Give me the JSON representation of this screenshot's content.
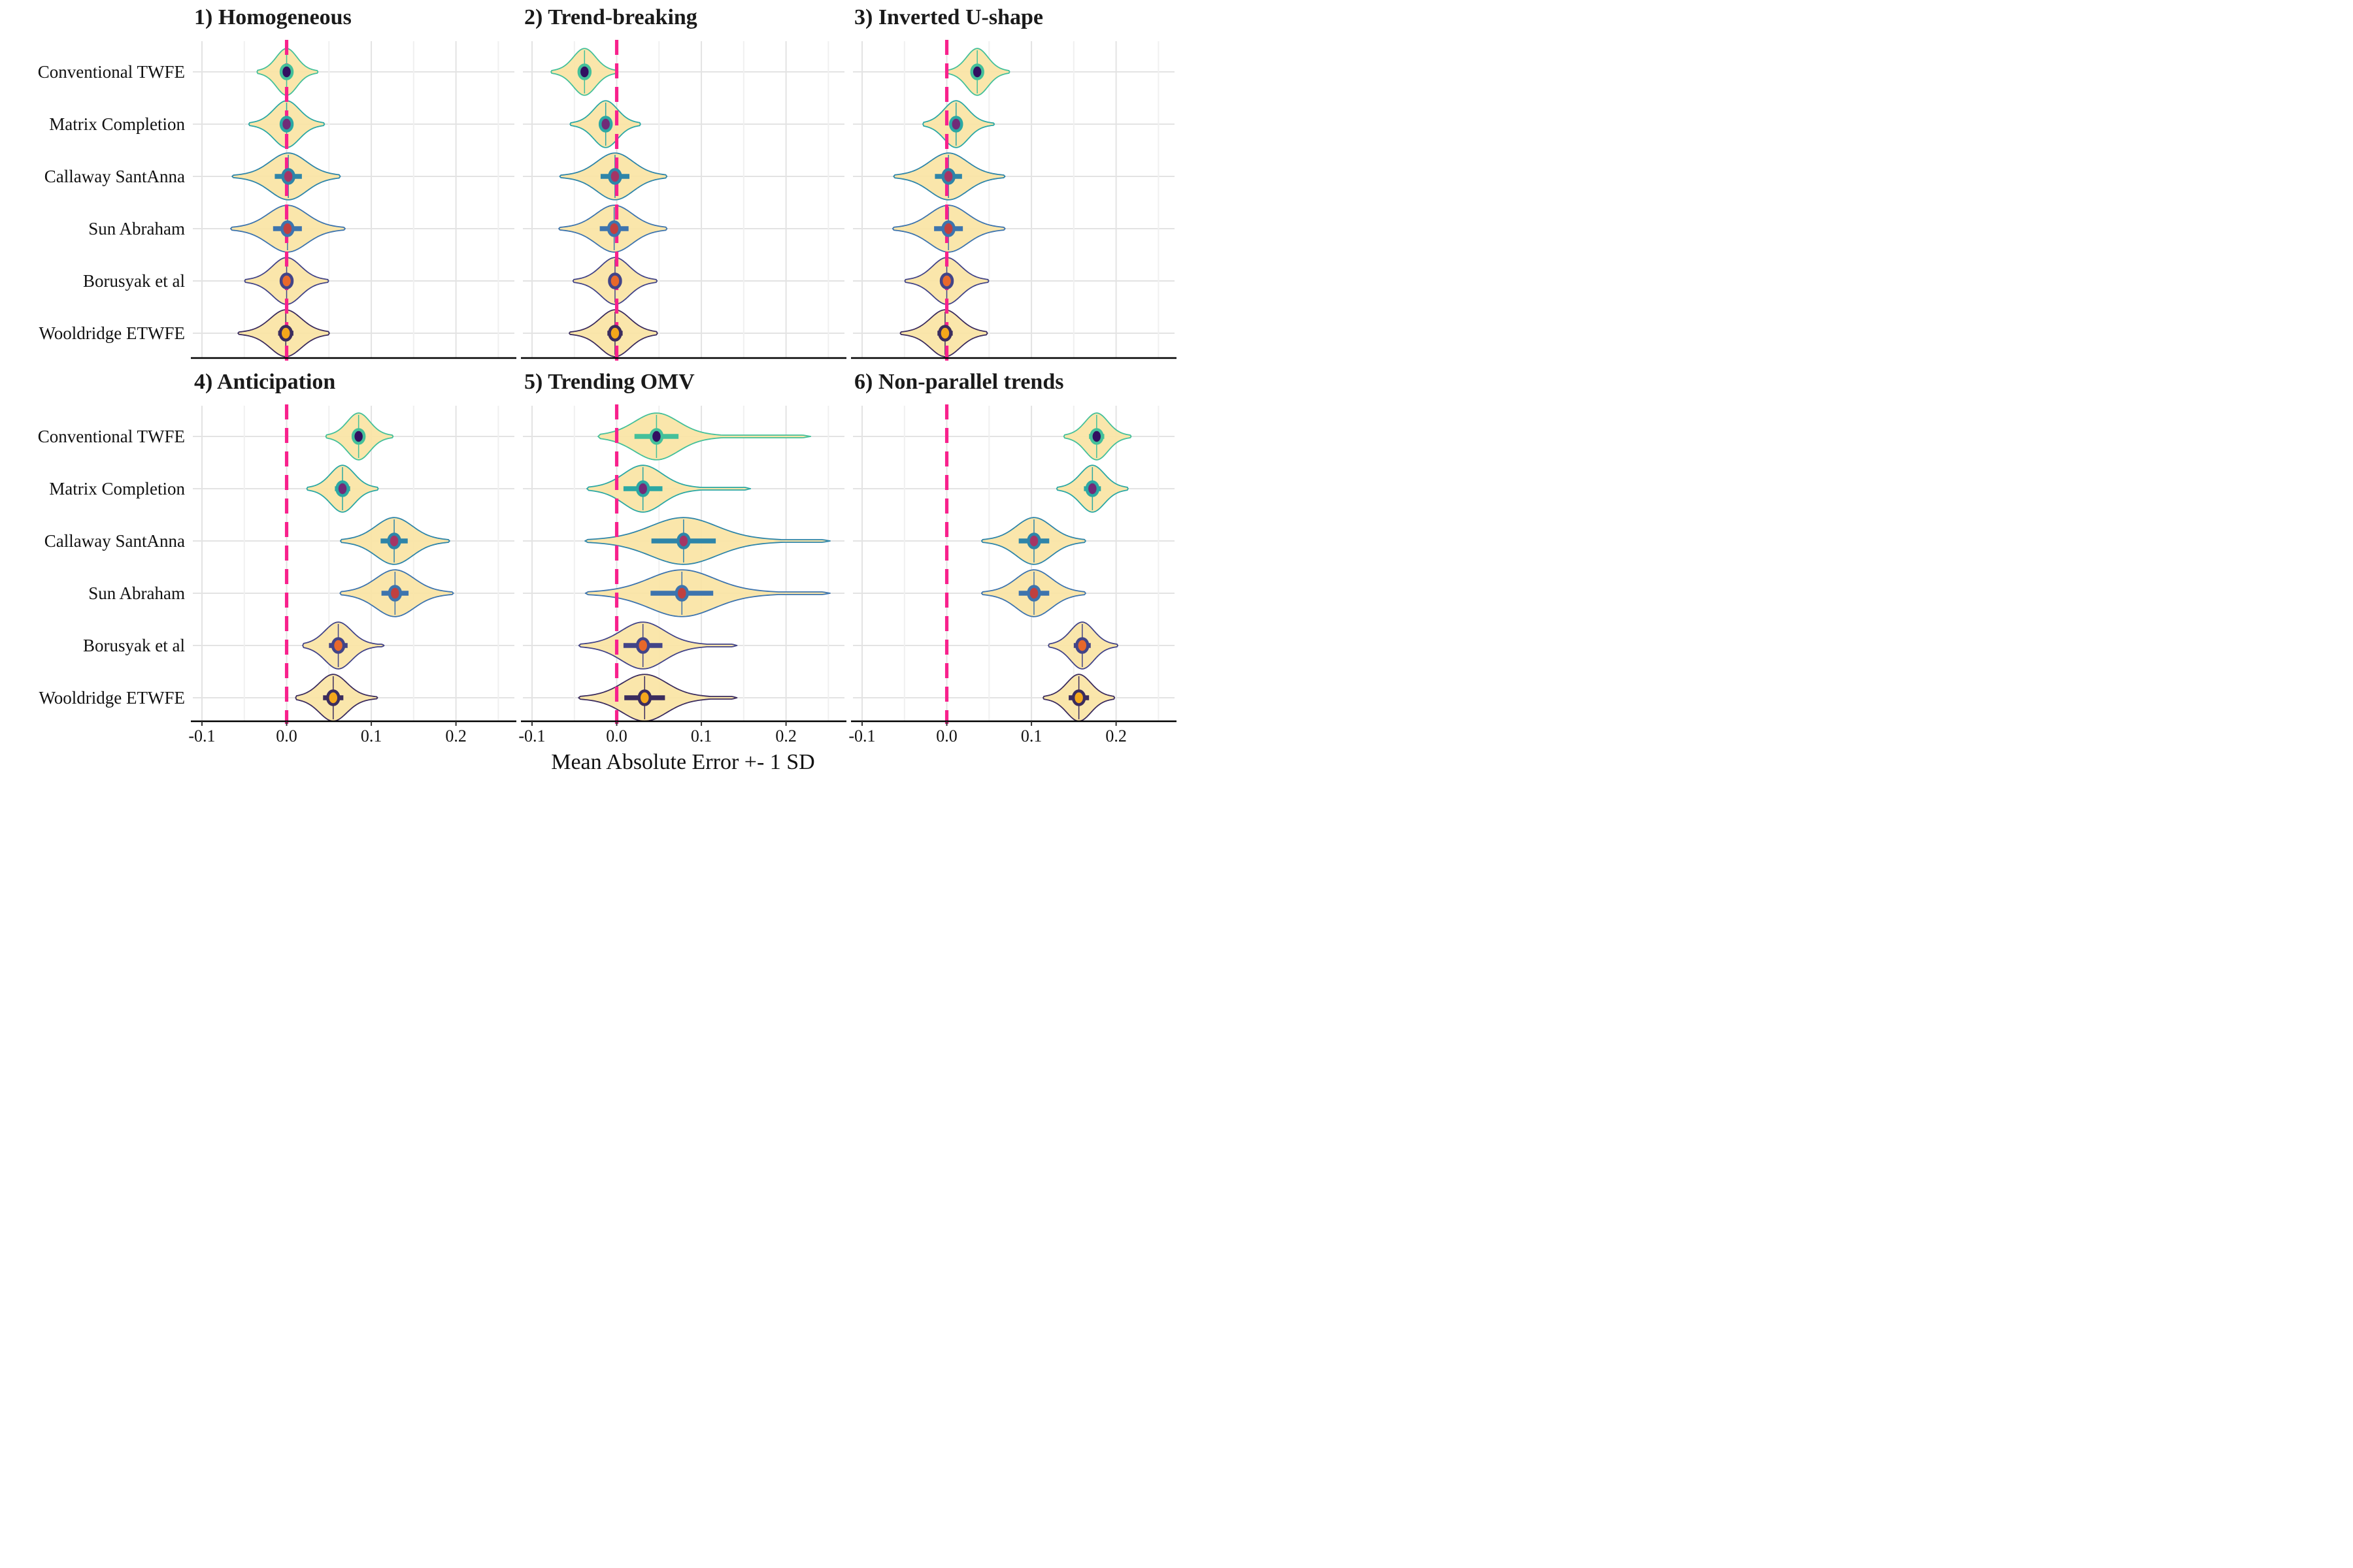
{
  "figure": {
    "caption": "Mean Absolute Error +- 1 SD"
  },
  "chart_data": {
    "type": "violin",
    "title": "",
    "xlabel": "Mean Absolute Error +- 1 SD",
    "x_axis": {
      "ticks": [
        -0.1,
        0.0,
        0.1,
        0.2
      ],
      "tick_labels": [
        "-0.1",
        "0.0",
        "0.1",
        "0.2"
      ],
      "range": [
        -0.1108,
        0.269
      ],
      "minor_gridlines": [
        -0.05,
        0.05,
        0.15,
        0.25
      ],
      "grid": true
    },
    "zero_reference_line": {
      "x": 0.0,
      "style": "dashed",
      "color": "#F8218C"
    },
    "violin_fill": "#FAE3A2",
    "grid_major_color": "#E3E3E3",
    "grid_minor_color": "#F0F0F0",
    "axis_line_color": "#000000",
    "estimators": [
      {
        "name": "Conventional TWFE",
        "outline_color": "#44C09A",
        "point_color": "#321061"
      },
      {
        "name": "Matrix Completion",
        "outline_color": "#2BA8A4",
        "point_color": "#712B78"
      },
      {
        "name": "Callaway SantAnna",
        "outline_color": "#2E85A9",
        "point_color": "#A53565"
      },
      {
        "name": "Sun Abraham",
        "outline_color": "#3D74AE",
        "point_color": "#C04040"
      },
      {
        "name": "Borusyak et al",
        "outline_color": "#424488",
        "point_color": "#E8682B"
      },
      {
        "name": "Wooldridge ETWFE",
        "outline_color": "#3B2C5E",
        "point_color": "#F4A71C"
      }
    ],
    "panels": [
      {
        "title": "1) Homogeneous",
        "violins": [
          {
            "mean": 0.0,
            "sd": 0.006,
            "lo": -0.028,
            "hi": 0.03
          },
          {
            "mean": 0.0,
            "sd": 0.006,
            "lo": -0.036,
            "hi": 0.036
          },
          {
            "mean": 0.002,
            "sd": 0.016,
            "lo": -0.052,
            "hi": 0.051
          },
          {
            "mean": 0.001,
            "sd": 0.017,
            "lo": -0.053,
            "hi": 0.056
          },
          {
            "mean": 0.0,
            "sd": 0.008,
            "lo": -0.04,
            "hi": 0.04
          },
          {
            "mean": -0.001,
            "sd": 0.009,
            "lo": -0.047,
            "hi": 0.04
          }
        ]
      },
      {
        "title": "2) Trend-breaking",
        "violins": [
          {
            "mean": -0.038,
            "sd": 0.006,
            "lo": -0.07,
            "hi": -0.007
          },
          {
            "mean": -0.013,
            "sd": 0.007,
            "lo": -0.047,
            "hi": 0.02
          },
          {
            "mean": -0.002,
            "sd": 0.017,
            "lo": -0.055,
            "hi": 0.047
          },
          {
            "mean": -0.003,
            "sd": 0.017,
            "lo": -0.056,
            "hi": 0.047
          },
          {
            "mean": -0.002,
            "sd": 0.008,
            "lo": -0.042,
            "hi": 0.038
          },
          {
            "mean": -0.002,
            "sd": 0.009,
            "lo": -0.046,
            "hi": 0.038
          }
        ]
      },
      {
        "title": "3) Inverted U-shape",
        "violins": [
          {
            "mean": 0.036,
            "sd": 0.006,
            "lo": 0.007,
            "hi": 0.067
          },
          {
            "mean": 0.011,
            "sd": 0.007,
            "lo": -0.02,
            "hi": 0.048
          },
          {
            "mean": 0.002,
            "sd": 0.016,
            "lo": -0.05,
            "hi": 0.056
          },
          {
            "mean": 0.002,
            "sd": 0.017,
            "lo": -0.051,
            "hi": 0.056
          },
          {
            "mean": 0.0,
            "sd": 0.008,
            "lo": -0.04,
            "hi": 0.04
          },
          {
            "mean": -0.002,
            "sd": 0.009,
            "lo": -0.045,
            "hi": 0.038
          }
        ]
      },
      {
        "title": "4) Anticipation",
        "violins": [
          {
            "mean": 0.085,
            "sd": 0.008,
            "lo": 0.054,
            "hi": 0.118
          },
          {
            "mean": 0.066,
            "sd": 0.009,
            "lo": 0.032,
            "hi": 0.1
          },
          {
            "mean": 0.127,
            "sd": 0.016,
            "lo": 0.076,
            "hi": 0.18
          },
          {
            "mean": 0.128,
            "sd": 0.016,
            "lo": 0.076,
            "hi": 0.184
          },
          {
            "mean": 0.061,
            "sd": 0.011,
            "lo": 0.028,
            "hi": 0.103,
            "tail_hi": 0.115
          },
          {
            "mean": 0.055,
            "sd": 0.012,
            "lo": 0.02,
            "hi": 0.098
          }
        ]
      },
      {
        "title": "5) Trending OMV",
        "violins": [
          {
            "mean": 0.047,
            "sd": 0.026,
            "lo": -0.012,
            "hi": 0.112,
            "tail_lo": -0.022,
            "tail_hi": 0.229
          },
          {
            "mean": 0.031,
            "sd": 0.023,
            "lo": -0.022,
            "hi": 0.088,
            "tail_hi": 0.158
          },
          {
            "mean": 0.079,
            "sd": 0.038,
            "lo": -0.015,
            "hi": 0.172,
            "tail_hi": 0.252
          },
          {
            "mean": 0.077,
            "sd": 0.037,
            "lo": -0.015,
            "hi": 0.168,
            "tail_hi": 0.252
          },
          {
            "mean": 0.031,
            "sd": 0.023,
            "lo": -0.03,
            "hi": 0.092,
            "tail_hi": 0.142
          },
          {
            "mean": 0.033,
            "sd": 0.024,
            "lo": -0.03,
            "hi": 0.095,
            "tail_hi": 0.142
          }
        ]
      },
      {
        "title": "6) Non-parallel trends",
        "violins": [
          {
            "mean": 0.177,
            "sd": 0.009,
            "lo": 0.146,
            "hi": 0.21
          },
          {
            "mean": 0.172,
            "sd": 0.01,
            "lo": 0.138,
            "hi": 0.206
          },
          {
            "mean": 0.103,
            "sd": 0.018,
            "lo": 0.053,
            "hi": 0.152,
            "tail_hi": 0.164
          },
          {
            "mean": 0.103,
            "sd": 0.018,
            "lo": 0.053,
            "hi": 0.152,
            "tail_hi": 0.164
          },
          {
            "mean": 0.16,
            "sd": 0.01,
            "lo": 0.128,
            "hi": 0.194
          },
          {
            "mean": 0.156,
            "sd": 0.012,
            "lo": 0.122,
            "hi": 0.19
          }
        ]
      }
    ]
  }
}
